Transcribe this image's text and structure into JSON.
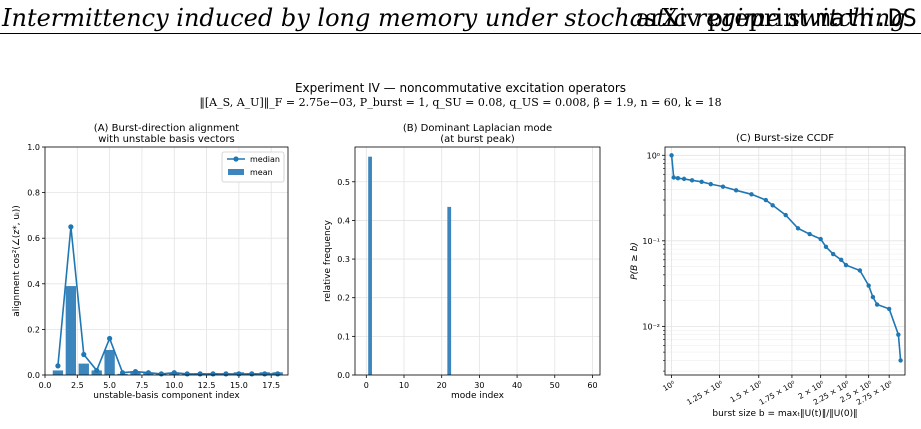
{
  "header": {
    "running_title": "Intermittency induced by long memory under stochastic regime switching",
    "preprint_label": "arXiv preprint",
    "preprint_category": "math.DS"
  },
  "figure": {
    "title": "Experiment IV — noncommutative excitation operators",
    "subtitle": "‖[A_S, A_U]‖_F = 2.75e−03,  P_burst = 1,  q_SU = 0.08,  q_US = 0.008,  β = 1.9,  n = 60,  k = 18"
  },
  "colors": {
    "bar": "#3d86bd",
    "line": "#1f77b4",
    "grid": "#e3e3e3"
  },
  "chart_data": [
    {
      "type": "bar",
      "title": "(A) Burst-direction alignment\nwith unstable basis vectors",
      "xlabel": "unstable-basis component index",
      "ylabel": "alignment cos²(∠(z*, uᵢ))",
      "xlim": [
        0,
        18.8
      ],
      "ylim": [
        0,
        1.0
      ],
      "xticks": [
        "0.0",
        "2.5",
        "5.0",
        "7.5",
        "10.0",
        "12.5",
        "15.0",
        "17.5"
      ],
      "yticks": [
        "0.0",
        "0.2",
        "0.4",
        "0.6",
        "0.8",
        "1.0"
      ],
      "grid": true,
      "legend_position": "top-right",
      "series": [
        {
          "name": "median",
          "type": "line",
          "x": [
            1,
            2,
            3,
            4,
            5,
            6,
            7,
            8,
            9,
            10,
            11,
            12,
            13,
            14,
            15,
            16,
            17,
            18
          ],
          "values": [
            0.04,
            0.65,
            0.09,
            0.02,
            0.16,
            0.01,
            0.015,
            0.01,
            0.005,
            0.01,
            0.005,
            0.005,
            0.005,
            0.005,
            0.005,
            0.005,
            0.005,
            0.005
          ]
        },
        {
          "name": "mean",
          "type": "bar",
          "x": [
            1,
            2,
            3,
            4,
            5,
            6,
            7,
            8,
            9,
            10,
            11,
            12,
            13,
            14,
            15,
            16,
            17,
            18
          ],
          "values": [
            0.02,
            0.39,
            0.05,
            0.02,
            0.11,
            0.005,
            0.015,
            0.01,
            0.005,
            0.01,
            0.005,
            0.008,
            0.008,
            0.005,
            0.012,
            0.008,
            0.012,
            0.012
          ]
        }
      ]
    },
    {
      "type": "bar",
      "title": "(B) Dominant Laplacian mode\n(at burst peak)",
      "xlabel": "mode index",
      "ylabel": "relative frequency",
      "xlim": [
        -3,
        62
      ],
      "ylim": [
        0,
        0.59
      ],
      "xticks": [
        "0",
        "10",
        "20",
        "30",
        "40",
        "50",
        "60"
      ],
      "yticks": [
        "0.0",
        "0.1",
        "0.2",
        "0.3",
        "0.4",
        "0.5"
      ],
      "grid": true,
      "x": [
        1,
        22
      ],
      "values": [
        0.565,
        0.435
      ]
    },
    {
      "type": "line",
      "title": "(C) Burst-size CCDF",
      "xlabel": "burst size b = maxₜ‖U(t)‖/‖U(0)‖",
      "ylabel": "P(B ≥ b)",
      "x_scale": "log",
      "y_scale": "log",
      "xlim": [
        0.97,
        2.96
      ],
      "ylim": [
        0.0027,
        1.25
      ],
      "xticks": [
        "10⁰",
        "1.25 × 10⁰",
        "1.5 × 10⁰",
        "1.75 × 10⁰",
        "2 × 10⁰",
        "2.25 × 10⁰",
        "2.5 × 10⁰",
        "2.75 × 10⁰"
      ],
      "yticks": [
        "10⁰",
        "10⁻¹",
        "10⁻²"
      ],
      "grid": true,
      "series": [
        {
          "x": [
            1.0,
            1.01,
            1.03,
            1.06,
            1.1,
            1.15,
            1.2,
            1.27,
            1.35,
            1.45,
            1.55,
            1.6,
            1.7,
            1.8,
            1.9,
            2.0,
            2.05,
            2.12,
            2.2,
            2.25,
            2.4,
            2.5,
            2.55,
            2.6,
            2.75,
            2.87,
            2.9
          ],
          "values": [
            1.0,
            0.55,
            0.54,
            0.53,
            0.51,
            0.49,
            0.46,
            0.43,
            0.39,
            0.35,
            0.3,
            0.26,
            0.2,
            0.14,
            0.12,
            0.105,
            0.085,
            0.07,
            0.06,
            0.052,
            0.045,
            0.03,
            0.022,
            0.018,
            0.016,
            0.008,
            0.004
          ]
        }
      ]
    }
  ]
}
